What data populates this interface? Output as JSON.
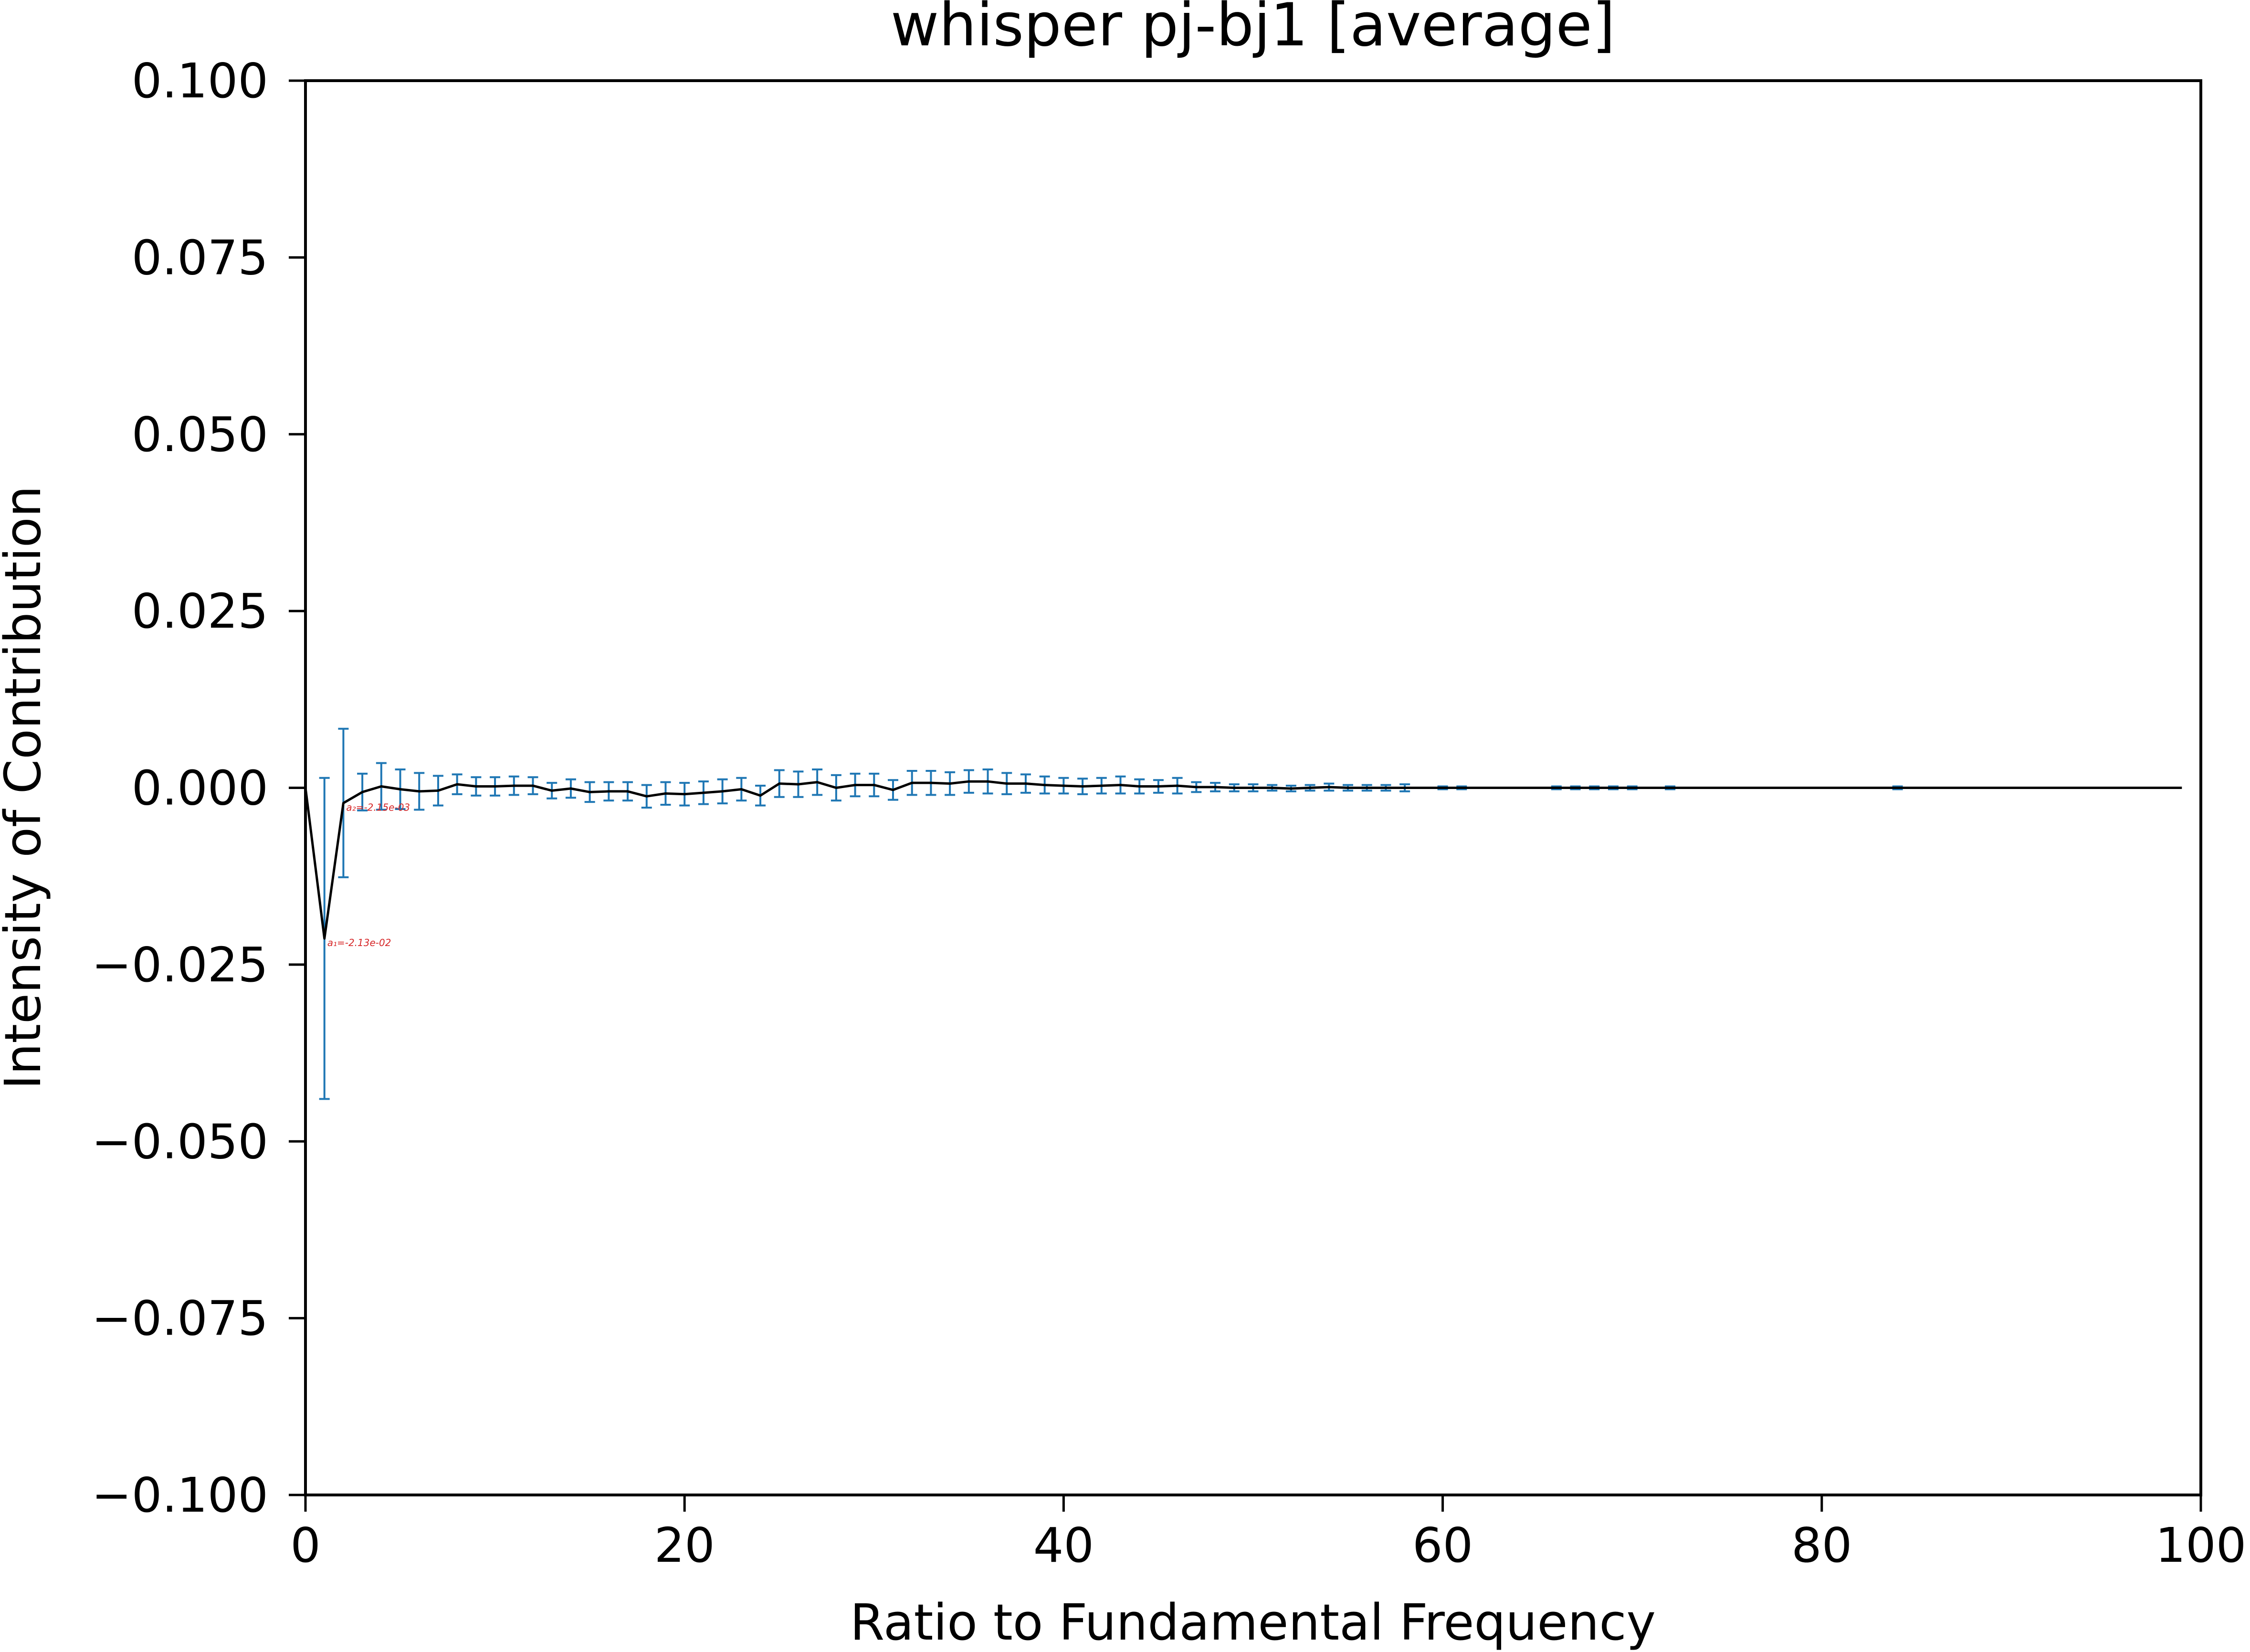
{
  "chart_data": {
    "type": "line",
    "title": "whisper pj-bj1 [average]",
    "xlabel": "Ratio to Fundamental Frequency",
    "ylabel": "Intensity of Contribution",
    "xlim": [
      0,
      100
    ],
    "ylim": [
      -0.1,
      0.1
    ],
    "xticks": [
      "0",
      "20",
      "40",
      "60",
      "80",
      "100"
    ],
    "yticks": [
      "0.100",
      "0.075",
      "0.050",
      "0.025",
      "0.000",
      "−0.025",
      "−0.050",
      "−0.075",
      "−0.100"
    ],
    "grid": false,
    "line_color": "#000000",
    "errorbar_color": "#1f77b4",
    "annotation_color": "#d62728",
    "series": [
      {
        "x": [
          0,
          1,
          2,
          3,
          4,
          5,
          6,
          7,
          8,
          9,
          10,
          11,
          12,
          13,
          14,
          15,
          16,
          17,
          18,
          19,
          20,
          21,
          22,
          23,
          24,
          25,
          26,
          27,
          28,
          29,
          30,
          31,
          32,
          33,
          34,
          35,
          36,
          37,
          38,
          39,
          40,
          41,
          42,
          43,
          44,
          45,
          46,
          47,
          48,
          49,
          50,
          51,
          52,
          53,
          54,
          55,
          56,
          57,
          58,
          59,
          60,
          61,
          62,
          63,
          64,
          65,
          66,
          67,
          68,
          69,
          70,
          71,
          72,
          73,
          74,
          75,
          76,
          77,
          78,
          79,
          80,
          81,
          82,
          83,
          84,
          85,
          86,
          87,
          88,
          89,
          90,
          91,
          92,
          93,
          94,
          95,
          96,
          97,
          98,
          99
        ],
        "y": [
          0,
          -0.0213,
          -0.00215,
          -0.0006,
          0.0002,
          -0.0002,
          -0.0005,
          -0.0004,
          0.0005,
          0.0002,
          0.0002,
          0.0003,
          0.0003,
          -0.0004,
          -0.0001,
          -0.0006,
          -0.0005,
          -0.0005,
          -0.0012,
          -0.0008,
          -0.0009,
          -0.0007,
          -0.0005,
          -0.0002,
          -0.0011,
          0.0006,
          0.0005,
          0.0008,
          0,
          0.0004,
          0.0004,
          -0.0003,
          0.0007,
          0.0007,
          0.0006,
          0.0009,
          0.0009,
          0.0006,
          0.0006,
          0.0004,
          0.0003,
          0.0002,
          0.0003,
          0.0004,
          0.0002,
          0.0002,
          0.0003,
          0.0001,
          0.0001,
          0,
          0,
          0,
          -0.0001,
          0,
          0.0001,
          0,
          0,
          0,
          0,
          0,
          0,
          0,
          0,
          0,
          0,
          0,
          0,
          0,
          0,
          0,
          0,
          0,
          0,
          0,
          0,
          0,
          0,
          0,
          0,
          0,
          0,
          0,
          0,
          0,
          0,
          0,
          0,
          0,
          0,
          0,
          0,
          0,
          0,
          0,
          0,
          0,
          0,
          0,
          0,
          0
        ],
        "yerr": [
          0,
          0.0227,
          0.0105,
          0.0026,
          0.0033,
          0.0028,
          0.0026,
          0.0021,
          0.0014,
          0.0013,
          0.0013,
          0.0013,
          0.0012,
          0.0011,
          0.0013,
          0.0014,
          0.0013,
          0.0013,
          0.0016,
          0.0016,
          0.0016,
          0.0016,
          0.0017,
          0.0016,
          0.0014,
          0.0019,
          0.0018,
          0.0018,
          0.0018,
          0.0016,
          0.0016,
          0.0014,
          0.0017,
          0.0017,
          0.0016,
          0.0016,
          0.0017,
          0.0015,
          0.0013,
          0.0012,
          0.0011,
          0.0011,
          0.0011,
          0.0012,
          0.001,
          0.0009,
          0.0011,
          0.0007,
          0.0006,
          0.0005,
          0.0005,
          0.0004,
          0.0004,
          0.0004,
          0.0005,
          0.0004,
          0.0004,
          0.0004,
          0.0005,
          0,
          0.0002,
          0.0002,
          0,
          0,
          0,
          0,
          0.0002,
          0.0002,
          0.0002,
          0.0002,
          0.0002,
          0,
          0.0002,
          0,
          0,
          0,
          0,
          0,
          0,
          0,
          0,
          0,
          0,
          0,
          0.0002,
          0,
          0,
          0,
          0,
          0,
          0,
          0,
          0,
          0,
          0,
          0,
          0,
          0,
          0,
          0
        ]
      }
    ],
    "annotations": [
      {
        "x": 1,
        "y": -0.0213,
        "text": "a₁=-2.13e-02"
      },
      {
        "x": 2,
        "y": -0.00215,
        "text": "a₂=-2.15e-03"
      }
    ]
  }
}
